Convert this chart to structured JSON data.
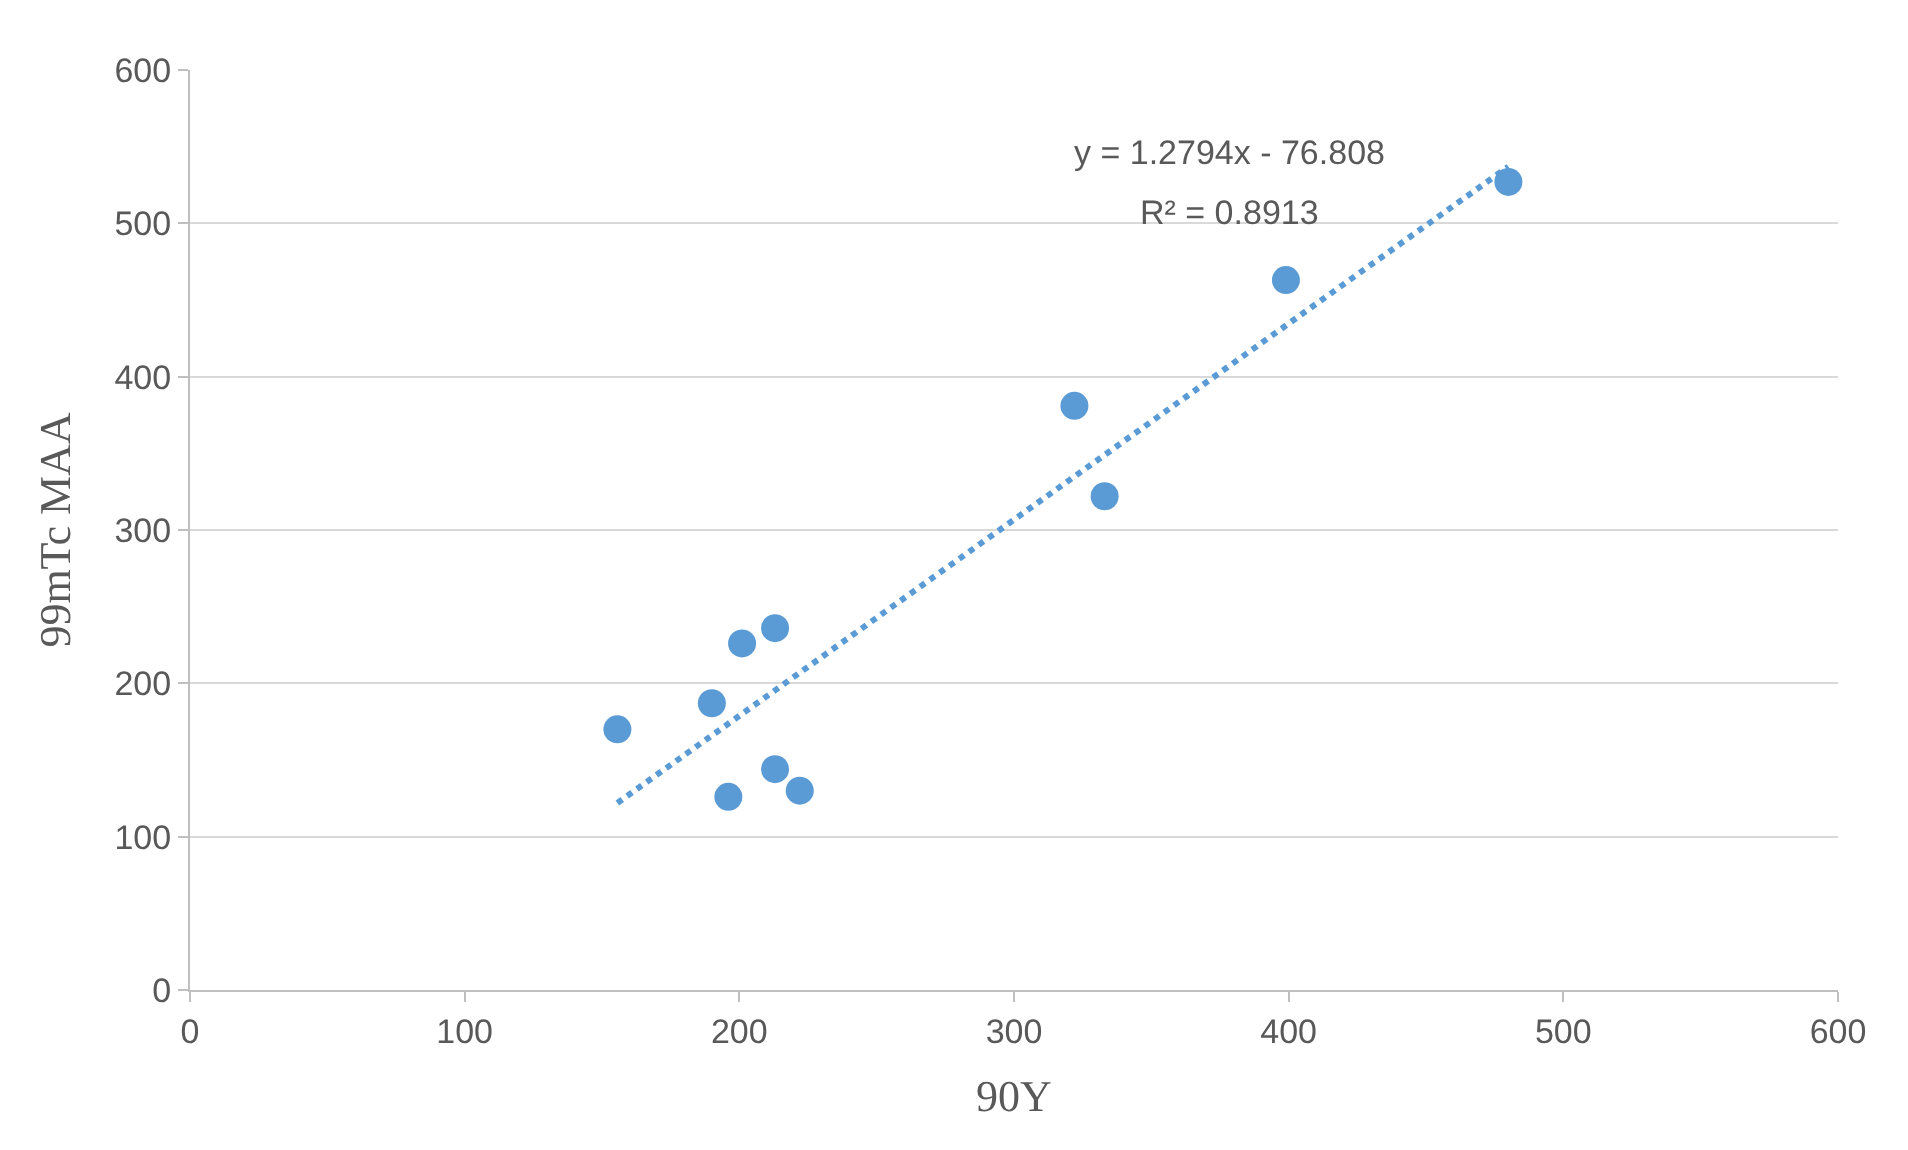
{
  "chart_data": {
    "type": "scatter",
    "xlabel": "90Y",
    "ylabel": "99mTc MAA",
    "x": [
      155.6,
      190,
      201,
      213,
      196,
      213,
      222,
      322,
      333,
      399,
      480
    ],
    "series": [
      {
        "color": "#5b9bd5",
        "marker": "circle",
        "values": [
          170,
          187,
          226,
          236,
          126,
          144,
          130,
          381,
          322,
          463,
          527
        ]
      },
      {
        "type": "line",
        "color": "#5b9bd5",
        "line_style": "dotted",
        "marker": "none",
        "x": [
          155.6,
          480
        ],
        "values": [
          122,
          537
        ]
      }
    ],
    "annotations": [
      "y = 1.2794x - 76.808",
      "R² = 0.8913"
    ],
    "xlim": [
      0,
      600
    ],
    "xticks": [
      0,
      100,
      200,
      300,
      400,
      500,
      600
    ],
    "ylim": [
      0,
      600
    ],
    "yticks": [
      0,
      100,
      200,
      300,
      400,
      500,
      600
    ],
    "grid": "y"
  }
}
